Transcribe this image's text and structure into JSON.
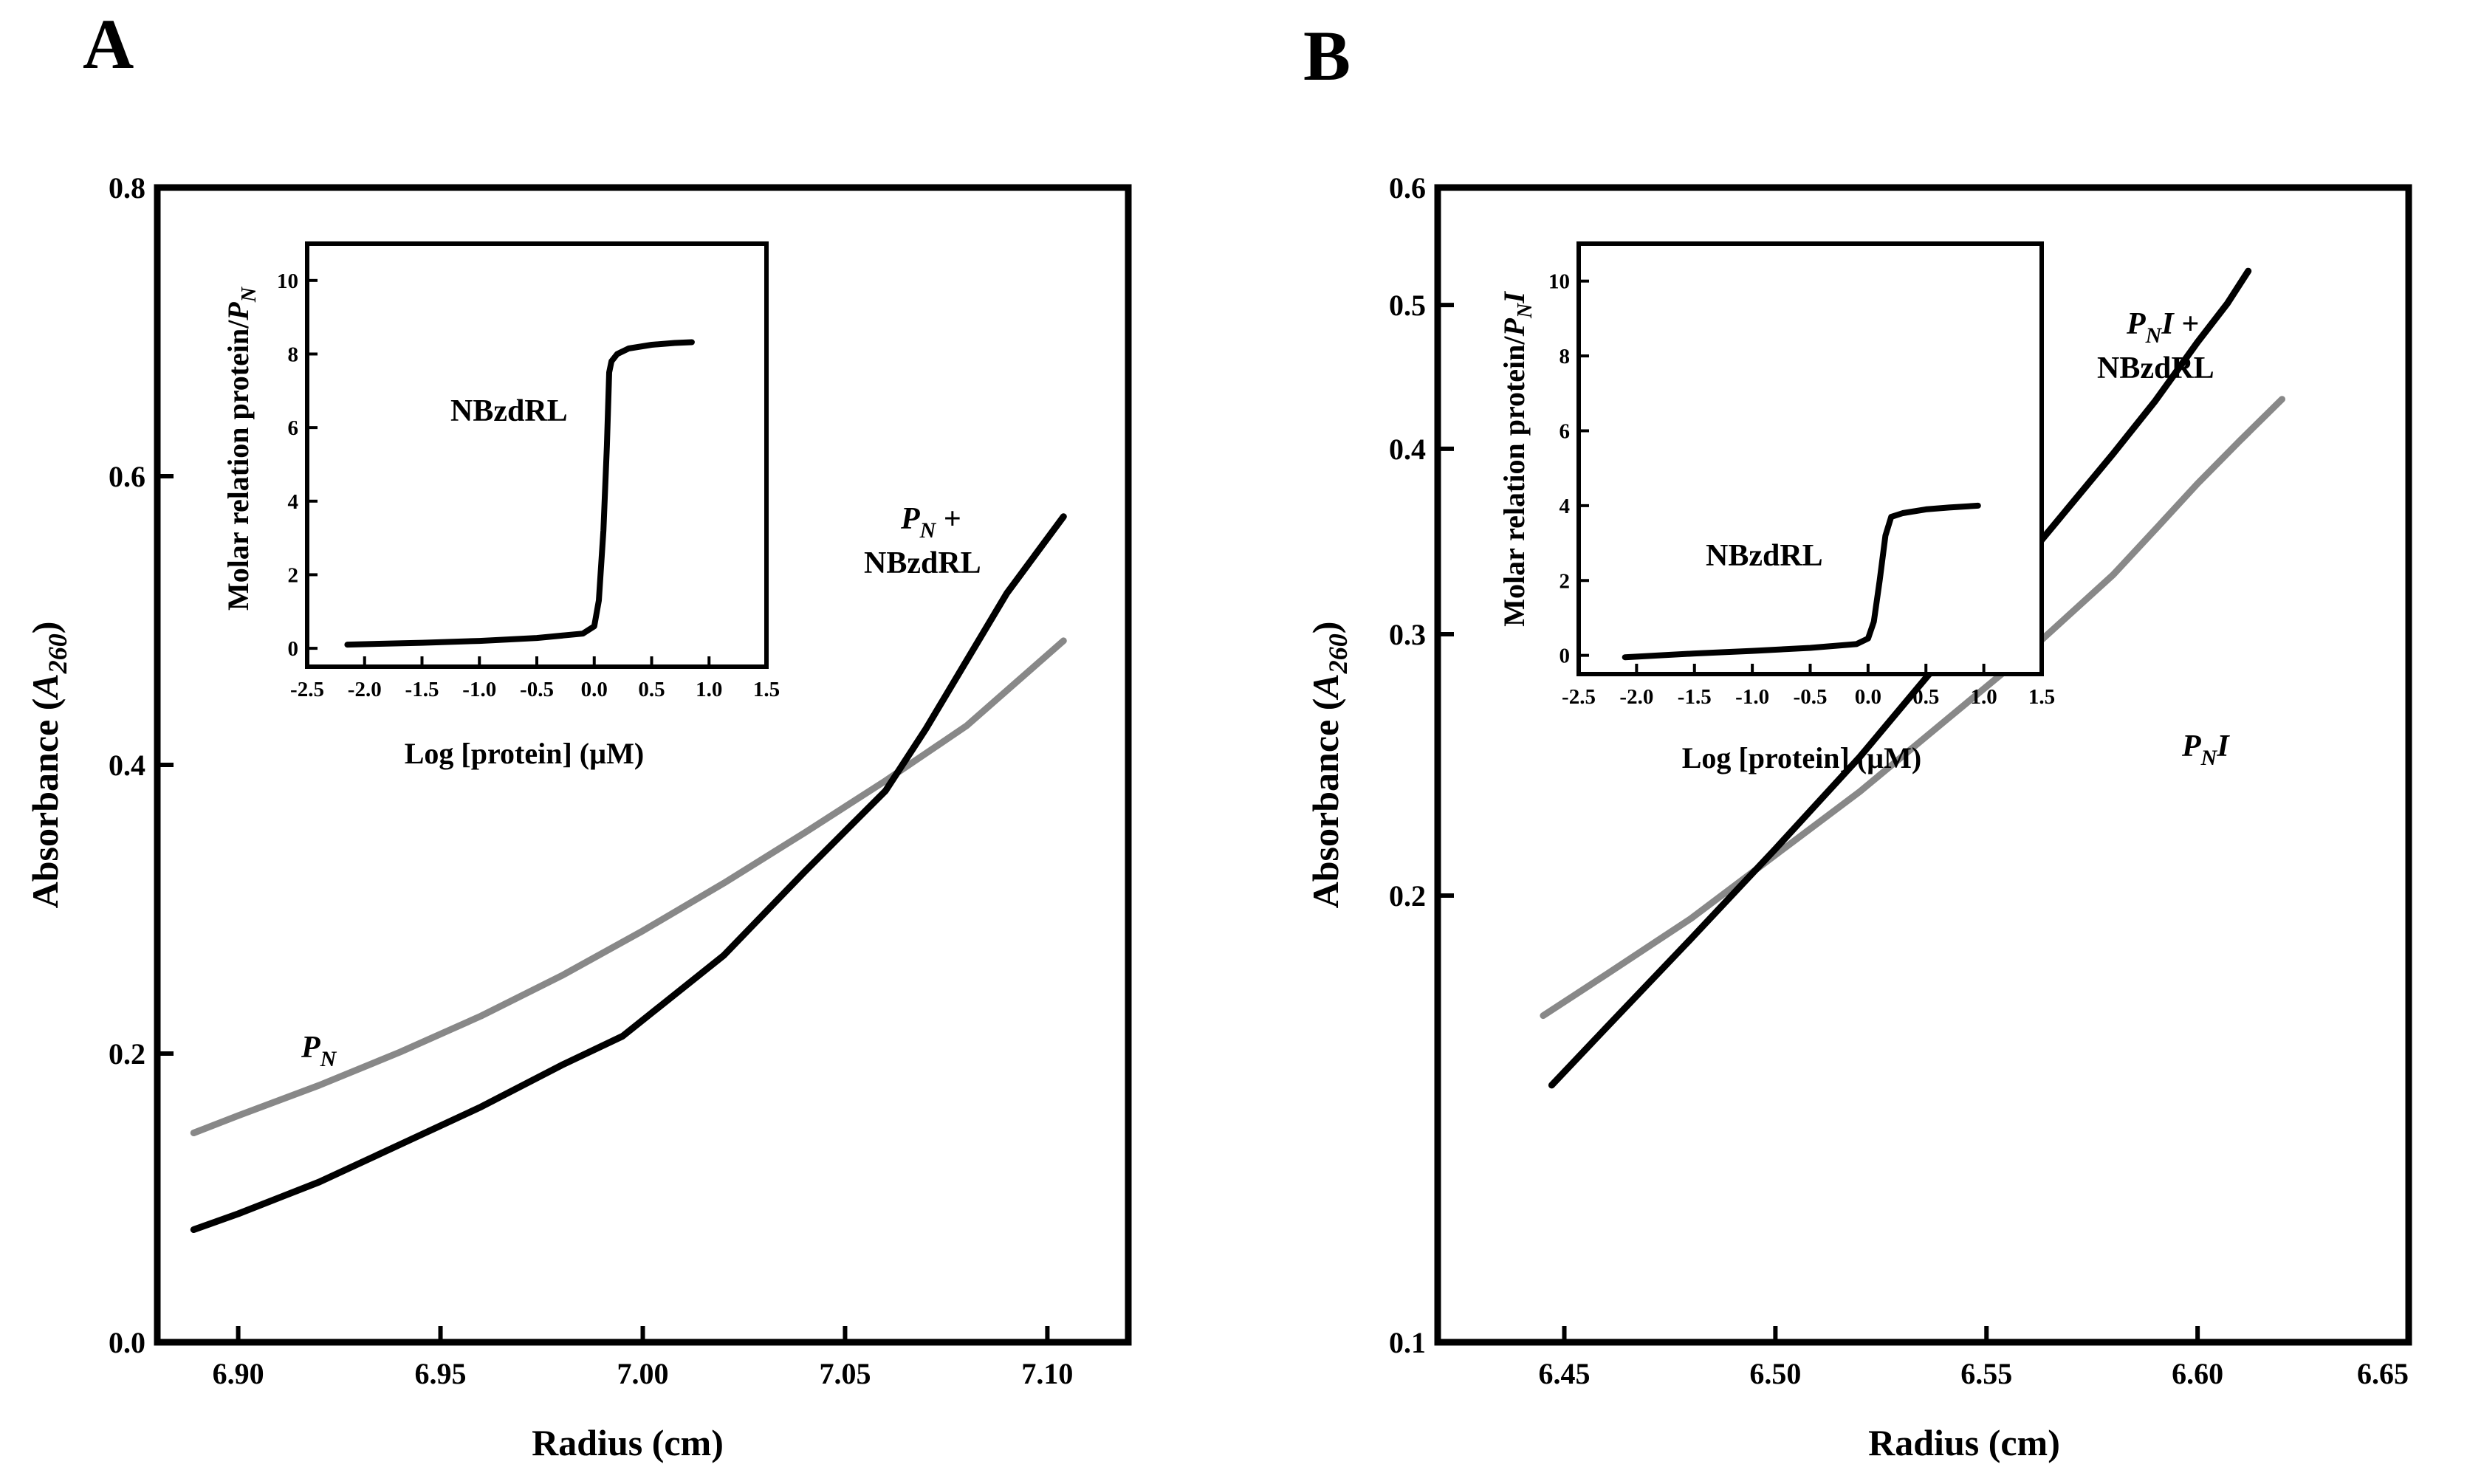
{
  "chart_data": [
    {
      "panel": "A",
      "type": "line",
      "xlabel": "Radius (cm)",
      "ylabel": "Absorbance (A260)",
      "ylabel_main": "Absorbance (",
      "ylabel_sym": "A",
      "ylabel_sub": "260",
      "ylabel_close": ")",
      "xlim": [
        6.88,
        7.12
      ],
      "ylim": [
        0.0,
        0.8
      ],
      "xticks": [
        6.9,
        6.95,
        7.0,
        7.05,
        7.1
      ],
      "xtick_labels": [
        "6.90",
        "6.95",
        "7.00",
        "7.05",
        "7.10"
      ],
      "yticks": [
        0.0,
        0.2,
        0.4,
        0.6,
        0.8
      ],
      "ytick_labels": [
        "0.0",
        "0.2",
        "0.4",
        "0.6",
        "0.8"
      ],
      "series": [
        {
          "name": "PN",
          "color": "#888888",
          "x": [
            6.889,
            6.9,
            6.92,
            6.94,
            6.96,
            6.98,
            7.0,
            7.02,
            7.04,
            7.06,
            7.08,
            7.104
          ],
          "y": [
            0.145,
            0.157,
            0.178,
            0.201,
            0.226,
            0.254,
            0.285,
            0.318,
            0.353,
            0.389,
            0.427,
            0.486
          ]
        },
        {
          "name": "PN + NBzdRL",
          "color": "#000000",
          "x": [
            6.889,
            6.9,
            6.92,
            6.94,
            6.96,
            6.98,
            6.995,
            7.02,
            7.04,
            7.06,
            7.07,
            7.08,
            7.09,
            7.104
          ],
          "y": [
            0.078,
            0.089,
            0.111,
            0.137,
            0.163,
            0.192,
            0.212,
            0.268,
            0.326,
            0.382,
            0.425,
            0.472,
            0.519,
            0.572
          ]
        }
      ],
      "annotations": [
        {
          "sym": "P",
          "sub": "N",
          "tail": ""
        },
        {
          "sym": "P",
          "sub": "N",
          "tail": " +",
          "line2": "NBzdRL"
        }
      ],
      "inset": {
        "type": "line",
        "xlabel": "Log [protein] (µM)",
        "ylabel_main": "Molar relation protein/",
        "ylabel_sym": "P",
        "ylabel_sub": "N",
        "ylabel_tail": "",
        "xlim": [
          -2.5,
          1.5
        ],
        "ylim": [
          -0.5,
          11
        ],
        "xticks": [
          -2.5,
          -2.0,
          -1.5,
          -1.0,
          -0.5,
          0.0,
          0.5,
          1.0,
          1.5
        ],
        "xtick_labels": [
          "-2.5",
          "-2.0",
          "-1.5",
          "-1.0",
          "-0.5",
          "0.0",
          "0.5",
          "1.0",
          "1.5"
        ],
        "yticks": [
          0,
          2,
          4,
          6,
          8,
          10
        ],
        "ytick_labels": [
          "0",
          "2",
          "4",
          "6",
          "8",
          "10"
        ],
        "label": "NBzdRL",
        "series": [
          {
            "name": "NBzdRL",
            "color": "#000000",
            "x": [
              -2.15,
              -1.5,
              -1.0,
              -0.5,
              -0.1,
              0.0,
              0.04,
              0.08,
              0.11,
              0.13,
              0.15,
              0.2,
              0.3,
              0.5,
              0.7,
              0.85
            ],
            "y": [
              0.1,
              0.15,
              0.2,
              0.28,
              0.4,
              0.6,
              1.3,
              3.2,
              5.5,
              7.5,
              7.8,
              8.0,
              8.15,
              8.25,
              8.3,
              8.32
            ]
          }
        ]
      }
    },
    {
      "panel": "B",
      "type": "line",
      "xlabel": "Radius (cm)",
      "ylabel": "Absorbance (A260)",
      "ylabel_main": "Absorbance (",
      "ylabel_sym": "A",
      "ylabel_sub": "260",
      "ylabel_close": ")",
      "xlim": [
        6.42,
        6.65
      ],
      "ylim": [
        0.1,
        0.6
      ],
      "yscale": "log",
      "xticks": [
        6.45,
        6.5,
        6.55,
        6.6,
        6.65
      ],
      "xtick_labels": [
        "6.45",
        "6.50",
        "6.55",
        "6.60",
        "6.65"
      ],
      "yticks": [
        0.1,
        0.2,
        0.3,
        0.4,
        0.5,
        0.6
      ],
      "ytick_labels": [
        "0.1",
        "0.2",
        "0.3",
        "0.4",
        "0.5",
        "0.6"
      ],
      "series": [
        {
          "name": "PNI",
          "color": "#888888",
          "x": [
            6.445,
            6.46,
            6.48,
            6.5,
            6.52,
            6.54,
            6.56,
            6.58,
            6.59,
            6.6,
            6.61,
            6.62
          ],
          "y": [
            0.166,
            0.177,
            0.193,
            0.213,
            0.235,
            0.262,
            0.292,
            0.329,
            0.353,
            0.379,
            0.405,
            0.432
          ]
        },
        {
          "name": "PNI + NBzdRL",
          "color": "#000000",
          "x": [
            6.447,
            6.46,
            6.48,
            6.5,
            6.52,
            6.54,
            6.56,
            6.58,
            6.59,
            6.6,
            6.607,
            6.612
          ],
          "y": [
            0.149,
            0.163,
            0.187,
            0.215,
            0.248,
            0.29,
            0.339,
            0.397,
            0.431,
            0.472,
            0.501,
            0.527
          ]
        }
      ],
      "annotations": [
        {
          "sym": "P",
          "sub": "N",
          "tail": "I"
        },
        {
          "sym": "P",
          "sub": "N",
          "tail": "I +",
          "line2": "NBzdRL"
        }
      ],
      "inset": {
        "type": "line",
        "xlabel": "Log [protein] (µM)",
        "ylabel_main": "Molar relation protein/",
        "ylabel_sym": "P",
        "ylabel_sub": "N",
        "ylabel_tail": "I",
        "xlim": [
          -2.5,
          1.5
        ],
        "ylim": [
          -0.5,
          11
        ],
        "xticks": [
          -2.5,
          -2.0,
          -1.5,
          -1.0,
          -0.5,
          0.0,
          0.5,
          1.0,
          1.5
        ],
        "xtick_labels": [
          "-2.5",
          "-2.0",
          "-1.5",
          "-1.0",
          "-0.5",
          "0.0",
          "0.5",
          "1.0",
          "1.5"
        ],
        "yticks": [
          0,
          2,
          4,
          6,
          8,
          10
        ],
        "ytick_labels": [
          "0",
          "2",
          "4",
          "6",
          "8",
          "10"
        ],
        "label": "NBzdRL",
        "series": [
          {
            "name": "NBzdRL",
            "color": "#000000",
            "x": [
              -2.1,
              -1.5,
              -1.0,
              -0.5,
              -0.1,
              0.0,
              0.05,
              0.1,
              0.15,
              0.2,
              0.3,
              0.5,
              0.7,
              0.95
            ],
            "y": [
              -0.05,
              0.05,
              0.12,
              0.2,
              0.3,
              0.45,
              0.9,
              2.0,
              3.2,
              3.7,
              3.8,
              3.9,
              3.95,
              4.0
            ]
          }
        ]
      }
    }
  ]
}
